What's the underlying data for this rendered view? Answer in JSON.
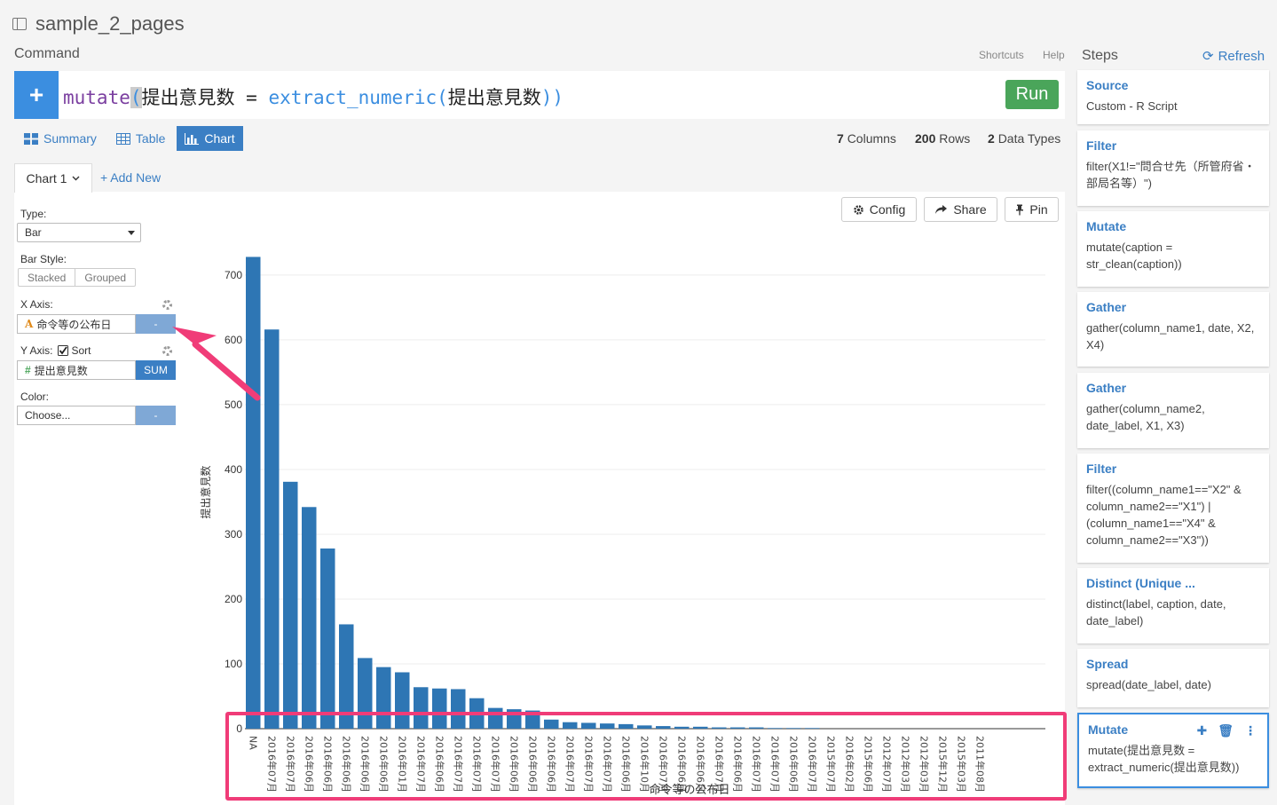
{
  "header": {
    "title": "sample_2_pages",
    "command_label": "Command",
    "shortcuts": "Shortcuts",
    "help": "Help"
  },
  "command": {
    "fn1": "mutate",
    "open1": "(",
    "col1": "提出意見数",
    "eq": " = ",
    "fn2": "extract_numeric",
    "open2": "(",
    "col2": "提出意見数",
    "close": "))",
    "run_label": "Run",
    "plus_label": "+"
  },
  "view_tabs": [
    {
      "label": "Summary",
      "icon": "summary-grid-icon"
    },
    {
      "label": "Table",
      "icon": "table-icon"
    },
    {
      "label": "Chart",
      "icon": "bar-chart-icon",
      "active": true
    }
  ],
  "stats": {
    "columns_num": "7",
    "columns_label": "Columns",
    "rows_num": "200",
    "rows_label": "Rows",
    "types_num": "2",
    "types_label": "Data Types"
  },
  "chart_tabs": {
    "current": "Chart 1",
    "add_new": "+ Add New"
  },
  "config": {
    "type_label": "Type:",
    "type_value": "Bar",
    "bar_style_label": "Bar Style:",
    "bar_style_options": [
      "Stacked",
      "Grouped"
    ],
    "x_axis_label": "X Axis:",
    "x_axis_type_icon": "A",
    "x_axis_value": "命令等の公布日",
    "x_axis_btn": "-",
    "y_axis_label": "Y Axis:",
    "sort_label": "Sort",
    "sort_checked": true,
    "y_axis_type_icon": "#",
    "y_axis_value": "提出意見数",
    "y_axis_btn": "SUM",
    "color_label": "Color:",
    "color_value": "Choose...",
    "color_btn": "-"
  },
  "toolbar": {
    "config": "Config",
    "share": "Share",
    "pin": "Pin"
  },
  "chart_data": {
    "type": "bar",
    "xlabel": "命令等の公布日",
    "ylabel": "提出意見数",
    "ylim": [
      0,
      730
    ],
    "yticks": [
      0,
      100,
      200,
      300,
      400,
      500,
      600,
      700
    ],
    "bar_color": "#2e76b4",
    "categories": [
      "NA",
      "2016年07月",
      "2016年07月",
      "2016年06月",
      "2016年06月",
      "2016年06月",
      "2016年06月",
      "2016年06月",
      "2016年01月",
      "2016年07月",
      "2016年06月",
      "2016年07月",
      "2016年07月",
      "2016年07月",
      "2016年06月",
      "2016年06月",
      "2016年06月",
      "2016年07月",
      "2016年07月",
      "2016年07月",
      "2016年06月",
      "2016年10月",
      "2016年07月",
      "2016年06月",
      "2016年06月",
      "2016年07月",
      "2016年06月",
      "2016年07月",
      "2016年07月",
      "2016年06月",
      "2016年07月",
      "2015年07月",
      "2016年02月",
      "2015年06月",
      "2012年07月",
      "2012年03月",
      "2012年03月",
      "2015年12月",
      "2015年03月",
      "2011年08月"
    ],
    "values": [
      728,
      616,
      381,
      342,
      278,
      161,
      109,
      95,
      87,
      64,
      62,
      61,
      47,
      32,
      30,
      28,
      14,
      10,
      9,
      8,
      7,
      5,
      4,
      3,
      3,
      2,
      2,
      2,
      1,
      1,
      1,
      0,
      0,
      0,
      0,
      0,
      0,
      0,
      0,
      0
    ]
  },
  "steps_panel": {
    "title": "Steps",
    "refresh": "Refresh"
  },
  "steps": [
    {
      "title": "Source",
      "body": "Custom - R Script"
    },
    {
      "title": "Filter",
      "body": "filter(X1!=\"問合せ先（所管府省・部局名等）\")"
    },
    {
      "title": "Mutate",
      "body": "mutate(caption = str_clean(caption))"
    },
    {
      "title": "Gather",
      "body": "gather(column_name1, date, X2, X4)"
    },
    {
      "title": "Gather",
      "body": "gather(column_name2, date_label, X1, X3)"
    },
    {
      "title": "Filter",
      "body": "filter((column_name1==\"X2\" & column_name2==\"X1\") | (column_name1==\"X4\" & column_name2==\"X3\"))"
    },
    {
      "title": "Distinct (Unique ...",
      "body": "distinct(label, caption, date, date_label)"
    },
    {
      "title": "Spread",
      "body": "spread(date_label, date)"
    },
    {
      "title": "Mutate",
      "body": "mutate(提出意見数 = extract_numeric(提出意見数))",
      "active": true
    }
  ],
  "annotation": {
    "arrow_color": "#f03c78",
    "highlight_color": "#f03c78"
  }
}
